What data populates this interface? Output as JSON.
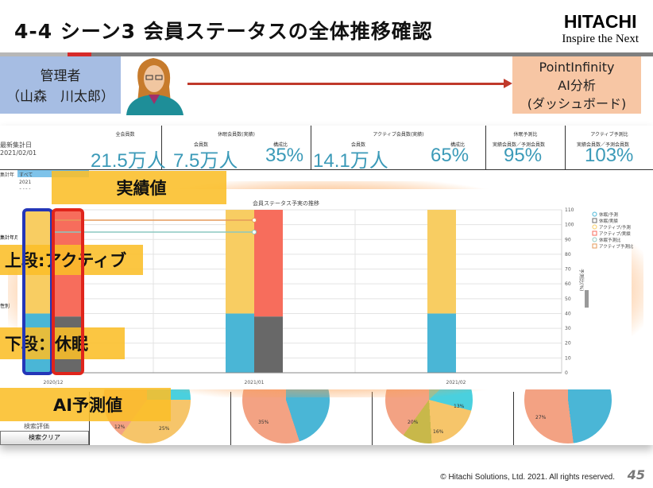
{
  "title": "4-4 シーン3 会員ステータスの全体推移確認",
  "logo": {
    "brand": "HITACHI",
    "tagline": "Inspire the Next"
  },
  "admin": {
    "role": "管理者",
    "name": "（山森　川太郎）"
  },
  "system": {
    "line1": "PointInfinity",
    "line2": "AI分析",
    "line3": "(ダッシュボード)"
  },
  "dashboard": {
    "date_label": "最新集計日",
    "date_value": "2021/02/01",
    "kpis": [
      {
        "header": "全会員数",
        "value": "21.5万人"
      },
      {
        "header": "休眠会員数(実績)",
        "sub1": "会員数",
        "value1": "7.5万人",
        "sub2": "構成比",
        "value2": "35%"
      },
      {
        "header": "アクティブ会員数(実績)",
        "sub1": "会員数",
        "value1": "14.1万人",
        "sub2": "構成比",
        "value2": "65%"
      },
      {
        "header": "休眠予測比",
        "sub1": "実績会員数／予測会員数",
        "value1": "95%"
      },
      {
        "header": "アクティブ予測比",
        "sub1": "実績会員数／予測会員数",
        "value1": "103%"
      }
    ],
    "filter": {
      "label": "集計年",
      "options": [
        "すべて",
        "2021",
        "2020"
      ],
      "month_label": "集計年月",
      "gender_label": "性別"
    },
    "search_label": "検索評価",
    "clear_button": "検索クリア",
    "pies": [
      [
        "12%",
        "25%"
      ],
      [
        "35%"
      ],
      [
        "20%",
        "16%",
        "13%"
      ],
      [
        "27%"
      ]
    ]
  },
  "chart_data": {
    "type": "bar",
    "title": "会員ステータス予実の推移",
    "categories": [
      "2020/12",
      "2021/01",
      "2021/02"
    ],
    "series": [
      {
        "name": "休眠/予測",
        "values": [
          40,
          40,
          40
        ],
        "color": "#4ab6d6"
      },
      {
        "name": "アクティブ/予測",
        "values": [
          70,
          70,
          70
        ],
        "color": "#f8cd62"
      },
      {
        "name": "休眠/実績",
        "values": [
          38,
          38,
          null
        ],
        "color": "#686868"
      },
      {
        "name": "アクティブ/実績",
        "values": [
          72,
          72,
          null
        ],
        "color": "#f76d5c"
      },
      {
        "name": "休眠予測比",
        "values": [
          95,
          95,
          null
        ],
        "color": "#8cc8c0",
        "type": "line"
      },
      {
        "name": "アクティブ予測比",
        "values": [
          103,
          103,
          null
        ],
        "color": "#e59a5a",
        "type": "line"
      }
    ],
    "ylabel": "予測比(%)",
    "ylim": [
      0,
      110
    ],
    "yticks": [
      0,
      10,
      20,
      30,
      40,
      50,
      60,
      70,
      80,
      90,
      100,
      110
    ],
    "legend": "top-right"
  },
  "callouts": {
    "actual": "実績値",
    "upper": "上段:アクティブ",
    "lower": "下段：休眠",
    "predicted": "AI予測値"
  },
  "footer": "© Hitachi Solutions, Ltd. 2021. All rights reserved.",
  "page": "45"
}
